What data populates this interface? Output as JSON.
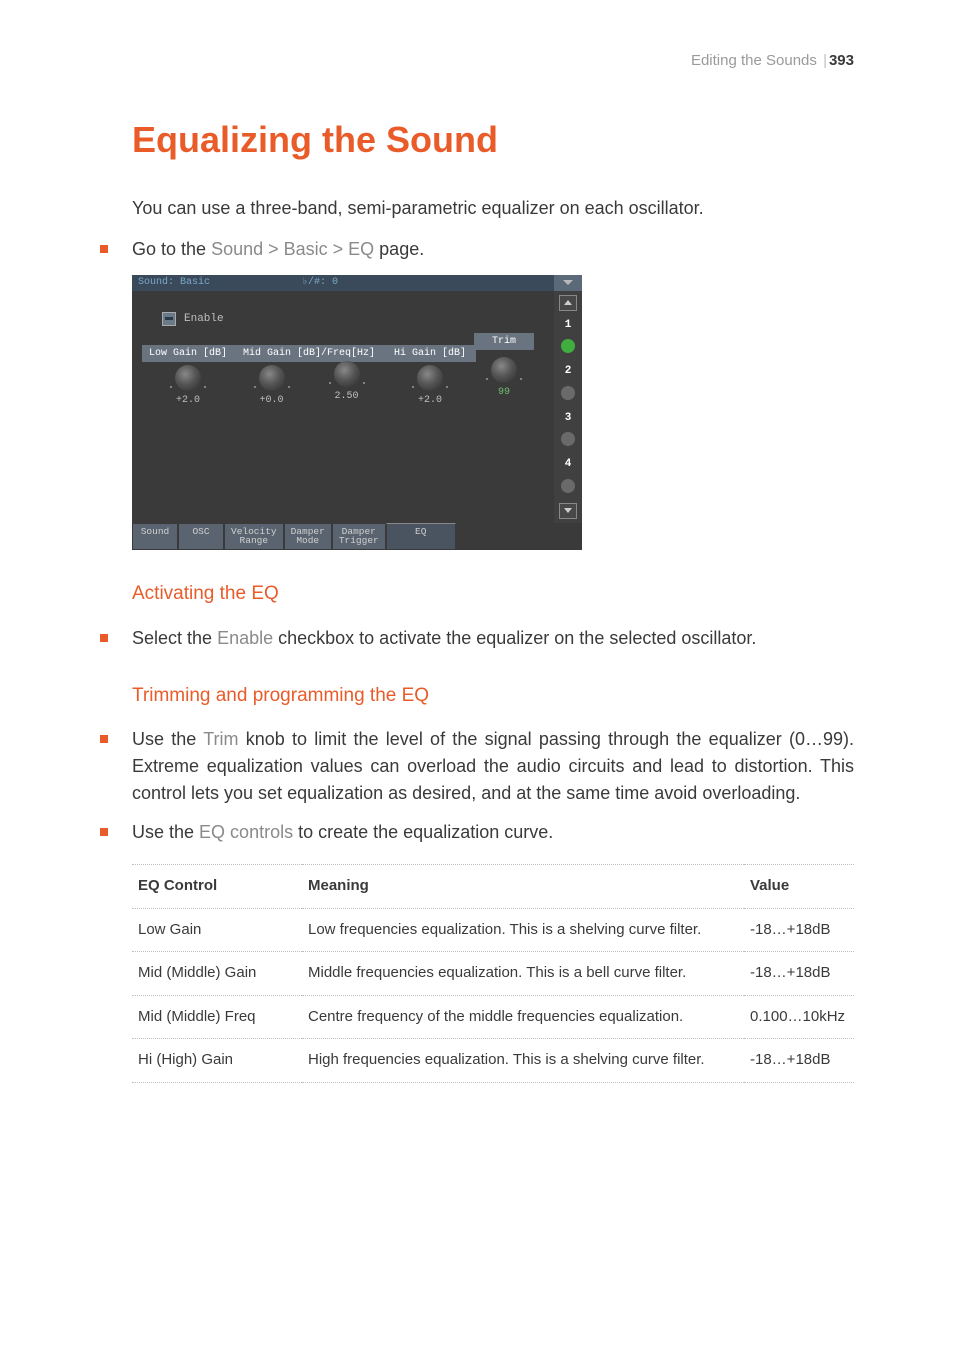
{
  "header": {
    "section": "Editing the Sounds",
    "page": "393"
  },
  "h1": "Equalizing the Sound",
  "intro": "You can use a three-band, semi-parametric equalizer on each oscillator.",
  "goto": {
    "prefix": "Go to the ",
    "path": "Sound > Basic > EQ",
    "suffix": " page."
  },
  "screenshot": {
    "titlebar": {
      "left": "Sound: Basic",
      "mid": "♭/#: 0"
    },
    "enable": "Enable",
    "trim": {
      "label": "Trim",
      "value": "99"
    },
    "cols": {
      "low": {
        "label": "Low Gain [dB]",
        "value": "+2.0"
      },
      "midG": {
        "label": "Mid Gain [dB]/Freq[Hz]",
        "value": "+0.0"
      },
      "midF": {
        "value": "2.50"
      },
      "hi": {
        "label": "Hi Gain [dB]",
        "value": "+2.0"
      }
    },
    "osc": [
      "1",
      "2",
      "3",
      "4"
    ],
    "tabs": [
      "Sound",
      "OSC",
      "Velocity\nRange",
      "Damper\nMode",
      "Damper\nTrigger",
      "EQ"
    ],
    "active_tab": 5
  },
  "h2a": "Activating the EQ",
  "activate": {
    "pre": "Select the ",
    "label": "Enable",
    "post": " checkbox to activate the equalizer on the selected oscillator."
  },
  "h2b": "Trimming and programming the EQ",
  "trimtext": {
    "pre": "Use the ",
    "label": "Trim",
    "post": " knob to limit the level of the signal passing through the equalizer (0…99). Extreme equalization values can overload the audio circuits and lead to distortion. This control lets you set equalization as desired, and at the same time avoid overloading."
  },
  "eqctrl": {
    "pre": "Use the ",
    "label": "EQ controls",
    "post": " to create the equalization curve."
  },
  "table": {
    "headers": [
      "EQ Control",
      "Meaning",
      "Value"
    ],
    "rows": [
      [
        "Low Gain",
        "Low frequencies equalization. This is a shelving curve filter.",
        "-18…+18dB"
      ],
      [
        "Mid (Middle) Gain",
        "Middle frequencies equalization. This is a bell curve filter.",
        "-18…+18dB"
      ],
      [
        "Mid (Middle) Freq",
        "Centre frequency of the middle frequencies equalization.",
        "0.100…10kHz"
      ],
      [
        "Hi (High) Gain",
        "High frequencies equalization. This is a shelving curve filter.",
        "-18…+18dB"
      ]
    ]
  }
}
